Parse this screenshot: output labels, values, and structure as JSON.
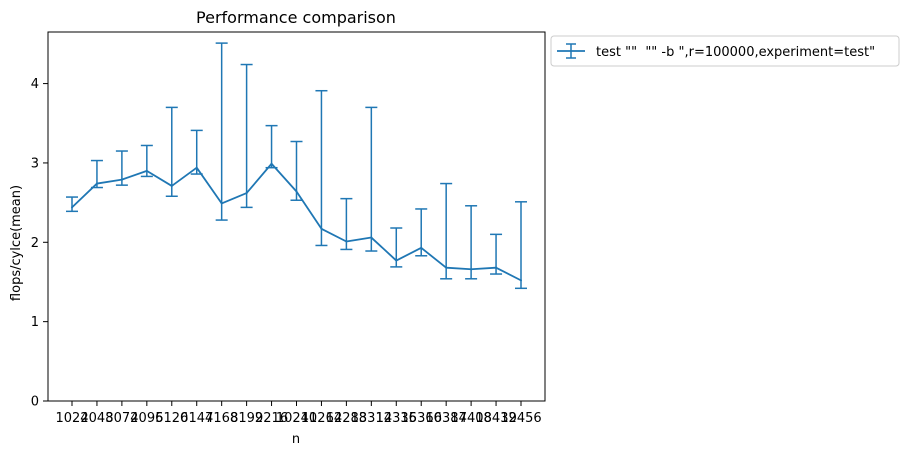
{
  "chart_data": {
    "type": "line",
    "title": "Performance comparison",
    "xlabel": "n",
    "ylabel": "flops/cylce(mean)",
    "ylim": [
      0,
      4.65
    ],
    "yticks": [
      0,
      1,
      2,
      3,
      4
    ],
    "grid": false,
    "legend_position": "outside-top-right",
    "series_color": "#1f77b4",
    "categories": [
      "1024",
      "2048",
      "3072",
      "4096",
      "5120",
      "6144",
      "7168",
      "8192",
      "9216",
      "10240",
      "11264",
      "12288",
      "13312",
      "14336",
      "15360",
      "16384",
      "17408",
      "18432",
      "19456"
    ],
    "series": [
      {
        "name": "test \"\"  \"\" -b \",r=100000,experiment=test\"",
        "values": [
          2.44,
          2.74,
          2.79,
          2.9,
          2.71,
          2.94,
          2.49,
          2.62,
          2.99,
          2.64,
          2.17,
          2.01,
          2.06,
          1.77,
          1.93,
          1.68,
          1.66,
          1.68,
          1.52
        ],
        "err_low": [
          2.39,
          2.69,
          2.72,
          2.83,
          2.58,
          2.86,
          2.28,
          2.44,
          2.94,
          2.53,
          1.96,
          1.91,
          1.89,
          1.69,
          1.83,
          1.54,
          1.54,
          1.6,
          1.42
        ],
        "err_high": [
          2.57,
          3.03,
          3.15,
          3.22,
          3.7,
          3.41,
          4.51,
          4.24,
          3.47,
          3.27,
          3.91,
          2.55,
          3.7,
          2.18,
          2.42,
          2.74,
          2.46,
          2.1,
          2.51
        ]
      }
    ]
  }
}
